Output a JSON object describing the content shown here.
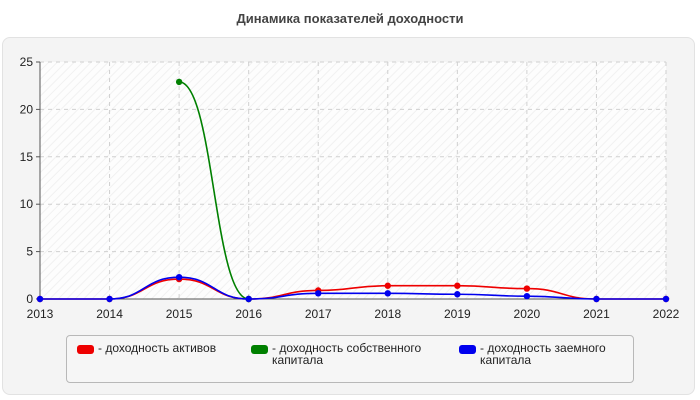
{
  "chart_data": {
    "type": "line",
    "title": "Динамика показателей доходности",
    "xlabel": "",
    "ylabel": "",
    "x": [
      "2013",
      "2014",
      "2015",
      "2016",
      "2017",
      "2018",
      "2019",
      "2020",
      "2021",
      "2022"
    ],
    "ylim": [
      0,
      25
    ],
    "yticks": [
      0,
      5,
      10,
      15,
      20,
      25
    ],
    "grid": true,
    "legend_position": "bottom",
    "series": [
      {
        "name": "- доходность активов",
        "color": "#ee0000",
        "values": [
          0,
          0,
          2.1,
          0,
          0.9,
          1.4,
          1.4,
          1.1,
          0,
          0
        ]
      },
      {
        "name": "- доходность собственного\nкапитала",
        "color": "#008000",
        "values": [
          null,
          null,
          22.9,
          0,
          null,
          null,
          null,
          null,
          null,
          null
        ]
      },
      {
        "name": "- доходность заемного\nкапитала",
        "color": "#0000ee",
        "values": [
          0,
          0,
          2.3,
          0,
          0.6,
          0.6,
          0.5,
          0.3,
          0,
          0
        ]
      }
    ]
  }
}
